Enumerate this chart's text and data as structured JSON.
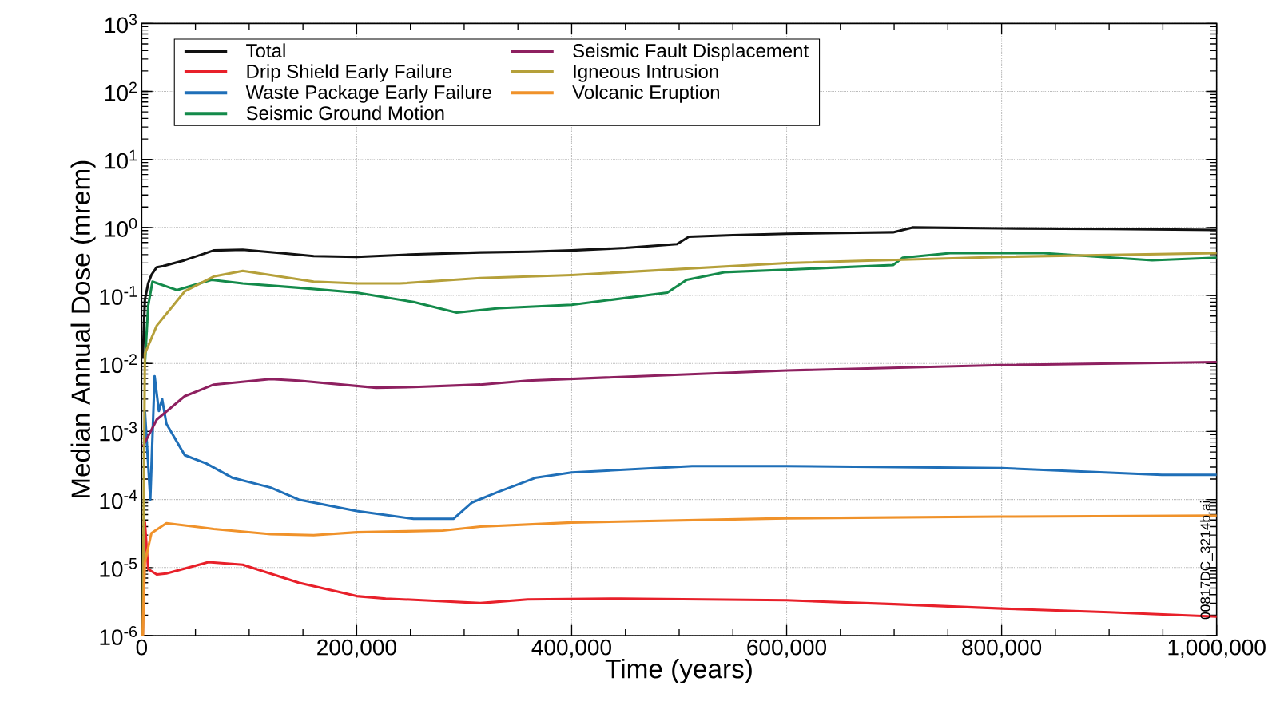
{
  "chart_data": {
    "type": "line",
    "xlabel": "Time (years)",
    "ylabel": "Median Annual Dose (mrem)",
    "annotations": [
      "00817DC_3214b.ai"
    ],
    "xlim": [
      0,
      1000000
    ],
    "ylim": [
      1e-06,
      1000
    ],
    "log": "y",
    "grid": true,
    "legend": "top left",
    "line_style": "solid",
    "marker": "none",
    "xticks": [
      {
        "value": 0,
        "label": "0"
      },
      {
        "value": 200000,
        "label": "200,000"
      },
      {
        "value": 400000,
        "label": "400,000"
      },
      {
        "value": 600000,
        "label": "600,000"
      },
      {
        "value": 800000,
        "label": "800,000"
      },
      {
        "value": 1000000,
        "label": "1,000,000"
      }
    ],
    "yticks": [
      {
        "value": 1e-06,
        "label": "10$^{-6}$"
      },
      {
        "value": 1e-05,
        "label": "10$^{-5}$"
      },
      {
        "value": 0.0001,
        "label": "10$^{-4}$"
      },
      {
        "value": 0.001,
        "label": "10$^{-3}$"
      },
      {
        "value": 0.01,
        "label": "10$^{-2}$"
      },
      {
        "value": 0.1,
        "label": "10$^{-1}$"
      },
      {
        "value": 1,
        "label": "10$^{0}$"
      },
      {
        "value": 10,
        "label": "10$^{1}$"
      },
      {
        "value": 100,
        "label": "10$^{2}$"
      },
      {
        "value": 1000,
        "label": "10$^{3}$"
      }
    ],
    "series": [
      {
        "name": "Total",
        "color": "#111111",
        "x": [
          1000,
          3000,
          6000,
          9000,
          14000,
          20000,
          40000,
          67000,
          94000,
          130000,
          160000,
          200000,
          250000,
          315000,
          360000,
          400000,
          450000,
          498000,
          509000,
          550000,
          600000,
          650000,
          699000,
          717000,
          800000,
          900000,
          1000000
        ],
        "values": [
          0.012,
          0.087,
          0.15,
          0.2,
          0.26,
          0.27,
          0.33,
          0.46,
          0.47,
          0.42,
          0.38,
          0.37,
          0.4,
          0.43,
          0.44,
          0.46,
          0.5,
          0.57,
          0.73,
          0.77,
          0.81,
          0.83,
          0.85,
          1.0,
          0.97,
          0.95,
          0.92
        ]
      },
      {
        "name": "Drip Shield Early Failure",
        "color": "#e8202a",
        "x": [
          1000,
          3000,
          6000,
          14000,
          23000,
          62000,
          94000,
          146000,
          200000,
          227000,
          280000,
          315000,
          359000,
          446000,
          600000,
          700000,
          800000,
          900000,
          1000000
        ],
        "values": [
          1e-06,
          4.6e-05,
          9.5e-06,
          7.9e-06,
          8.2e-06,
          1.2e-05,
          1.1e-05,
          6e-06,
          3.8e-06,
          3.5e-06,
          3.2e-06,
          3e-06,
          3.4e-06,
          3.5e-06,
          3.3e-06,
          2.9e-06,
          2.5e-06,
          2.2e-06,
          1.9e-06
        ]
      },
      {
        "name": "Waste Package Early Failure",
        "color": "#1f6fb8",
        "x": [
          3000,
          8000,
          12000,
          16000,
          19000,
          23000,
          40000,
          60000,
          84000,
          120000,
          146000,
          200000,
          253000,
          290000,
          307000,
          332000,
          367000,
          400000,
          512000,
          600000,
          800000,
          949000,
          1000000
        ],
        "values": [
          0.002,
          0.0001,
          0.0065,
          0.002,
          0.003,
          0.0013,
          0.00045,
          0.00034,
          0.00021,
          0.00015,
          0.0001,
          6.8e-05,
          5.2e-05,
          5.2e-05,
          9e-05,
          0.00013,
          0.00021,
          0.00025,
          0.00031,
          0.00031,
          0.00029,
          0.00023,
          0.00023
        ]
      },
      {
        "name": "Seismic Ground Motion",
        "color": "#138a4a",
        "x": [
          3000,
          6000,
          10000,
          33000,
          65000,
          94000,
          146000,
          200000,
          253000,
          293000,
          332000,
          400000,
          489000,
          507000,
          542000,
          600000,
          699000,
          708000,
          752000,
          839000,
          940000,
          1000000
        ],
        "values": [
          0.01,
          0.07,
          0.16,
          0.12,
          0.17,
          0.15,
          0.13,
          0.11,
          0.08,
          0.056,
          0.065,
          0.073,
          0.11,
          0.17,
          0.22,
          0.24,
          0.28,
          0.36,
          0.42,
          0.42,
          0.33,
          0.36
        ]
      },
      {
        "name": "Seismic Fault Displacement",
        "color": "#8e2060",
        "x": [
          1000,
          14000,
          40000,
          67000,
          120000,
          146000,
          218000,
          253000,
          315000,
          359000,
          600000,
          800000,
          1000000
        ],
        "values": [
          0.0006,
          0.0015,
          0.0033,
          0.0049,
          0.0059,
          0.0056,
          0.0044,
          0.0045,
          0.0049,
          0.0056,
          0.0079,
          0.0095,
          0.0105
        ]
      },
      {
        "name": "Igneous Intrusion",
        "color": "#b5a03a",
        "x": [
          1000,
          3000,
          14000,
          40000,
          67000,
          94000,
          120000,
          160000,
          200000,
          240000,
          315000,
          400000,
          600000,
          800000,
          1000000
        ],
        "values": [
          1e-06,
          0.014,
          0.036,
          0.115,
          0.19,
          0.23,
          0.2,
          0.16,
          0.15,
          0.15,
          0.18,
          0.2,
          0.3,
          0.37,
          0.42
        ]
      },
      {
        "name": "Volcanic Eruption",
        "color": "#f0922a",
        "x": [
          1000,
          3000,
          9000,
          23000,
          67000,
          120000,
          160000,
          200000,
          280000,
          315000,
          400000,
          600000,
          800000,
          1000000
        ],
        "values": [
          1e-06,
          1.2e-05,
          3.2e-05,
          4.5e-05,
          3.7e-05,
          3.1e-05,
          3e-05,
          3.3e-05,
          3.5e-05,
          4e-05,
          4.6e-05,
          5.3e-05,
          5.6e-05,
          5.8e-05
        ]
      }
    ]
  }
}
